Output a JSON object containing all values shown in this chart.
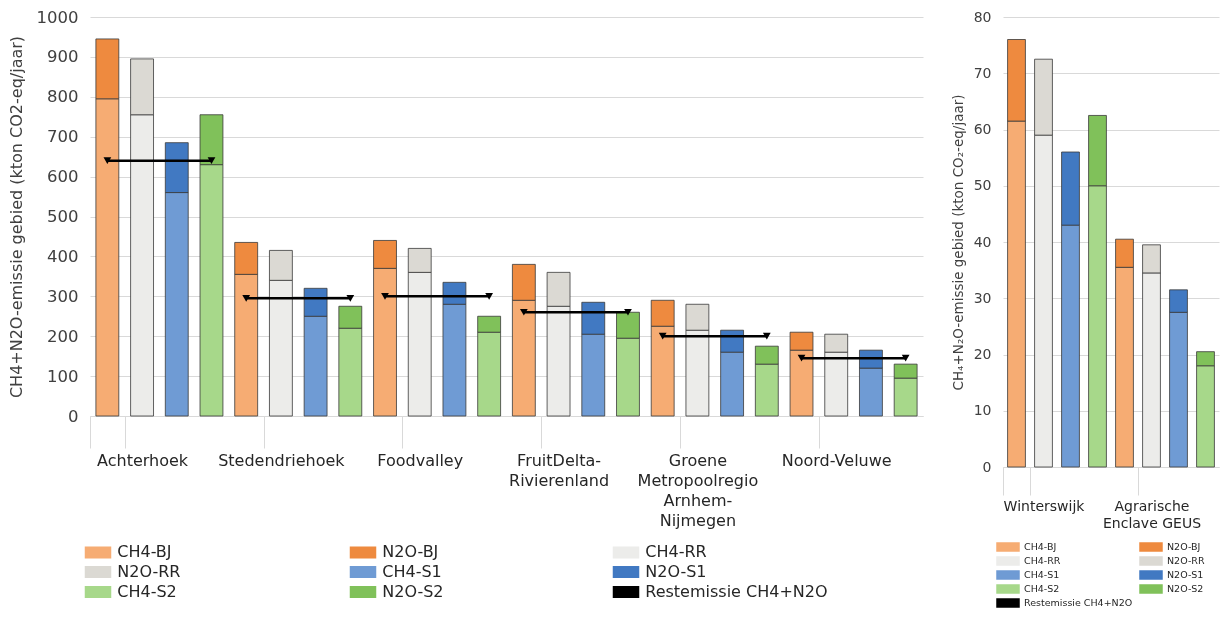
{
  "chart_data": [
    {
      "type": "bar",
      "stacked": true,
      "ylabel": "CH4+N2O-emissie gebied (kton CO2-eq/jaar)",
      "ylim": [
        0,
        1000
      ],
      "yticks": [
        0,
        100,
        200,
        300,
        400,
        500,
        600,
        700,
        800,
        900,
        1000
      ],
      "grid": "y",
      "legend": "bottom",
      "categories": [
        null,
        "Achterhoek",
        null,
        null,
        null,
        "Stedendriehoek",
        null,
        null,
        null,
        "Foodvalley",
        null,
        null,
        null,
        "FruitDelta-Rivierenland",
        null,
        null,
        null,
        "Groene Metropoolregio Arnhem-Nijmegen",
        null,
        null,
        null,
        "Noord-Veluwe",
        null,
        null
      ],
      "series": [
        {
          "name": "CH4-BJ",
          "color": "#f6ac73",
          "values": [
            795,
            null,
            null,
            null,
            355,
            null,
            null,
            null,
            370,
            null,
            null,
            null,
            290,
            null,
            null,
            null,
            225,
            null,
            null,
            null,
            165,
            null,
            null,
            null
          ]
        },
        {
          "name": "N2O-BJ",
          "color": "#ee8a3f",
          "values": [
            150,
            null,
            null,
            null,
            80,
            null,
            null,
            null,
            70,
            null,
            null,
            null,
            90,
            null,
            null,
            null,
            65,
            null,
            null,
            null,
            45,
            null,
            null,
            null
          ]
        },
        {
          "name": "CH4-RR",
          "color": "#ececea",
          "values": [
            null,
            755,
            null,
            null,
            null,
            340,
            null,
            null,
            null,
            360,
            null,
            null,
            null,
            275,
            null,
            null,
            null,
            215,
            null,
            null,
            null,
            160,
            null,
            null
          ]
        },
        {
          "name": "N2O-RR",
          "color": "#dbd9d3",
          "values": [
            null,
            140,
            null,
            null,
            null,
            75,
            null,
            null,
            null,
            60,
            null,
            null,
            null,
            85,
            null,
            null,
            null,
            65,
            null,
            null,
            null,
            45,
            null,
            null
          ]
        },
        {
          "name": "CH4-S1",
          "color": "#6f9bd4",
          "values": [
            null,
            null,
            560,
            null,
            null,
            null,
            250,
            null,
            null,
            null,
            280,
            null,
            null,
            null,
            205,
            null,
            null,
            null,
            160,
            null,
            null,
            null,
            120,
            null
          ]
        },
        {
          "name": "N2O-S1",
          "color": "#4179c2",
          "values": [
            null,
            null,
            125,
            null,
            null,
            null,
            70,
            null,
            null,
            null,
            55,
            null,
            null,
            null,
            80,
            null,
            null,
            null,
            55,
            null,
            null,
            null,
            45,
            null
          ]
        },
        {
          "name": "CH4-S2",
          "color": "#a7d88a",
          "values": [
            null,
            null,
            null,
            630,
            null,
            null,
            null,
            220,
            null,
            null,
            null,
            210,
            null,
            null,
            null,
            195,
            null,
            null,
            null,
            130,
            null,
            null,
            null,
            95
          ]
        },
        {
          "name": "N2O-S2",
          "color": "#80c15a",
          "values": [
            null,
            null,
            null,
            125,
            null,
            null,
            null,
            55,
            null,
            null,
            null,
            40,
            null,
            null,
            null,
            65,
            null,
            null,
            null,
            45,
            null,
            null,
            null,
            35
          ]
        },
        {
          "name": "Restemissie CH4+N2O",
          "type": "line",
          "marker": "triangle",
          "color": "#000000",
          "values": [
            640,
            640,
            640,
            640,
            null,
            null,
            null,
            null,
            null,
            null,
            null,
            null,
            null,
            null,
            null,
            null,
            null,
            null,
            null,
            null,
            null,
            null,
            null,
            null
          ]
        },
        {
          "type": "line",
          "marker": "triangle",
          "color": "#000000",
          "values": [
            null,
            null,
            null,
            null,
            295,
            295,
            295,
            295,
            null,
            null,
            null,
            null,
            null,
            null,
            null,
            null,
            null,
            null,
            null,
            null,
            null,
            null,
            null,
            null
          ]
        },
        {
          "type": "line",
          "marker": "triangle",
          "color": "#000000",
          "values": [
            null,
            null,
            null,
            null,
            null,
            null,
            null,
            null,
            300,
            300,
            300,
            300,
            null,
            null,
            null,
            null,
            null,
            null,
            null,
            null,
            null,
            null,
            null,
            null
          ]
        },
        {
          "type": "line",
          "marker": "triangle",
          "color": "#000000",
          "values": [
            null,
            null,
            null,
            null,
            null,
            null,
            null,
            null,
            null,
            null,
            null,
            null,
            260,
            260,
            260,
            260,
            null,
            null,
            null,
            null,
            null,
            null,
            null,
            null
          ]
        },
        {
          "type": "line",
          "marker": "triangle",
          "color": "#000000",
          "values": [
            null,
            null,
            null,
            null,
            null,
            null,
            null,
            null,
            null,
            null,
            null,
            null,
            null,
            null,
            null,
            null,
            200,
            200,
            200,
            200,
            null,
            null,
            null,
            null
          ]
        },
        {
          "type": "line",
          "marker": "triangle",
          "color": "#000000",
          "values": [
            null,
            null,
            null,
            null,
            null,
            null,
            null,
            null,
            null,
            null,
            null,
            null,
            null,
            null,
            null,
            null,
            null,
            null,
            null,
            null,
            145,
            145,
            145,
            145
          ]
        }
      ]
    },
    {
      "type": "bar",
      "stacked": true,
      "ylabel": "CH₄+N₂O-emissie gebied (kton CO₂-eq/jaar)",
      "ylim": [
        0,
        80
      ],
      "yticks": [
        0,
        10,
        20,
        30,
        40,
        50,
        60,
        70,
        80
      ],
      "grid": "y",
      "legend": "bottom",
      "categories": [
        null,
        "Winterswijk",
        null,
        null,
        null,
        "Agrarische Enclave GEUS",
        null,
        null
      ],
      "series": [
        {
          "name": "CH4-BJ",
          "color": "#f6ac73",
          "values": [
            61.5,
            null,
            null,
            null,
            35.5,
            null,
            null,
            null
          ]
        },
        {
          "name": "N2O-BJ",
          "color": "#ee8a3f",
          "values": [
            14.5,
            null,
            null,
            null,
            5,
            null,
            null,
            null
          ]
        },
        {
          "name": "CH4-RR",
          "color": "#ececea",
          "values": [
            null,
            59,
            null,
            null,
            null,
            34.5,
            null,
            null
          ]
        },
        {
          "name": "N2O-RR",
          "color": "#dbd9d3",
          "values": [
            null,
            13.5,
            null,
            null,
            null,
            5,
            null,
            null
          ]
        },
        {
          "name": "CH4-S1",
          "color": "#6f9bd4",
          "values": [
            null,
            null,
            43,
            null,
            null,
            null,
            27.5,
            null
          ]
        },
        {
          "name": "N2O-S1",
          "color": "#4179c2",
          "values": [
            null,
            null,
            13,
            null,
            null,
            null,
            4,
            null
          ]
        },
        {
          "name": "CH4-S2",
          "color": "#a7d88a",
          "values": [
            null,
            null,
            null,
            50,
            null,
            null,
            null,
            18
          ]
        },
        {
          "name": "N2O-S2",
          "color": "#80c15a",
          "values": [
            null,
            null,
            null,
            12.5,
            null,
            null,
            null,
            2.5
          ]
        },
        {
          "name": "Restemissie CH4+N2O",
          "type": "line",
          "marker": "triangle",
          "color": "#000000",
          "values": [
            null,
            null,
            null,
            null,
            null,
            null,
            null,
            null
          ]
        }
      ]
    }
  ]
}
